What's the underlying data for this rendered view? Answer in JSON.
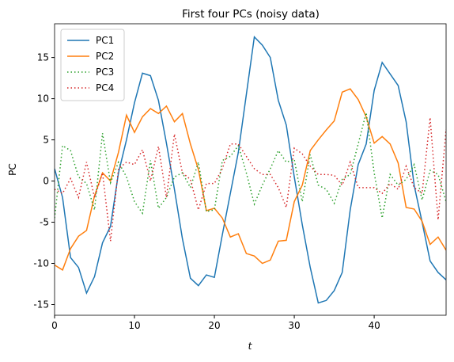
{
  "chart_data": {
    "type": "line",
    "title": "First four PCs (noisy data)",
    "xlabel": "t",
    "ylabel": "PC",
    "x": [
      0,
      1,
      2,
      3,
      4,
      5,
      6,
      7,
      8,
      9,
      10,
      11,
      12,
      13,
      14,
      15,
      16,
      17,
      18,
      19,
      20,
      21,
      22,
      23,
      24,
      25,
      26,
      27,
      28,
      29,
      30,
      31,
      32,
      33,
      34,
      35,
      36,
      37,
      38,
      39,
      40,
      41,
      42,
      43,
      44,
      45,
      46,
      47,
      48,
      49
    ],
    "series": [
      {
        "name": "PC1",
        "color": "#1f77b4",
        "dash": "solid",
        "values": [
          1.5,
          -2,
          -9.3,
          -10.5,
          -13.6,
          -11.6,
          -7.5,
          -5.5,
          1,
          5,
          9.5,
          13.1,
          12.8,
          9.8,
          4.6,
          -1,
          -7,
          -11.8,
          -12.7,
          -11.4,
          -11.7,
          -6.5,
          -1.5,
          3.5,
          10.5,
          17.5,
          16.5,
          15,
          9.8,
          6.8,
          0.5,
          -5.3,
          -10.5,
          -14.8,
          -14.5,
          -13.3,
          -11.1,
          -3.5,
          2,
          4.5,
          11,
          14.4,
          13,
          11.6,
          7.2,
          -0.5,
          -5,
          -9.7,
          -11.1,
          -12
        ]
      },
      {
        "name": "PC2",
        "color": "#ff7f0e",
        "dash": "solid",
        "values": [
          -10.2,
          -10.8,
          -8.2,
          -6.7,
          -6,
          -1.8,
          1,
          0,
          3.5,
          8,
          5.9,
          7.8,
          8.8,
          8.2,
          9.1,
          7.2,
          8.2,
          4.5,
          1.4,
          -3.6,
          -3.3,
          -4.5,
          -6.8,
          -6.4,
          -8.8,
          -9.1,
          -10,
          -9.6,
          -7.3,
          -7.2,
          -2.5,
          -0.5,
          3.7,
          5,
          6.2,
          7.3,
          10.8,
          11.2,
          9.9,
          7.8,
          4.6,
          5.4,
          4.5,
          2.2,
          -3.2,
          -3.4,
          -4.9,
          -7.7,
          -6.8,
          -8.4
        ]
      },
      {
        "name": "PC3",
        "color": "#2ca02c",
        "dash": "dotted",
        "values": [
          -4.5,
          4.3,
          3.7,
          0.5,
          -0.3,
          -3.5,
          5.8,
          -0.2,
          2.3,
          0.5,
          -2.5,
          -3.9,
          2.5,
          -3.3,
          -2,
          0.5,
          1,
          -0.8,
          2.3,
          -3.7,
          -3.5,
          2.5,
          3,
          4.3,
          1,
          -2.8,
          -0.5,
          1.5,
          3.7,
          2.3,
          2.6,
          -2.5,
          3.2,
          -0.5,
          -1,
          -2.7,
          0.2,
          0.8,
          4.5,
          8.3,
          1,
          -4.5,
          0.8,
          -0.5,
          0.2,
          2,
          -2.3,
          1.3,
          0.8,
          -2.5
        ]
      },
      {
        "name": "PC4",
        "color": "#d62728",
        "dash": "dotted",
        "values": [
          -1,
          -1.5,
          0.3,
          -2,
          2.3,
          -2,
          1,
          -7.3,
          1.5,
          2.3,
          2,
          3.8,
          0,
          4.2,
          -2,
          5.7,
          1,
          0.2,
          -3.5,
          -0.3,
          -0.3,
          1.5,
          4.5,
          4.5,
          3,
          1.5,
          0.8,
          0.8,
          -0.8,
          -3.2,
          4,
          3.3,
          1.8,
          0.8,
          0.8,
          0.7,
          -0.5,
          2.3,
          -0.8,
          -0.8,
          -0.8,
          -1.5,
          -0.3,
          -1,
          1.8,
          -0.8,
          -1.5,
          7.7,
          -4.7,
          6.3
        ]
      }
    ],
    "xlim": [
      0,
      49
    ],
    "ylim": [
      -16.3,
      19.1
    ],
    "xticks": [
      0,
      10,
      20,
      30,
      40
    ],
    "yticks": [
      -15,
      -10,
      -5,
      0,
      5,
      10,
      15
    ],
    "grid": false,
    "legend": "upper left"
  }
}
